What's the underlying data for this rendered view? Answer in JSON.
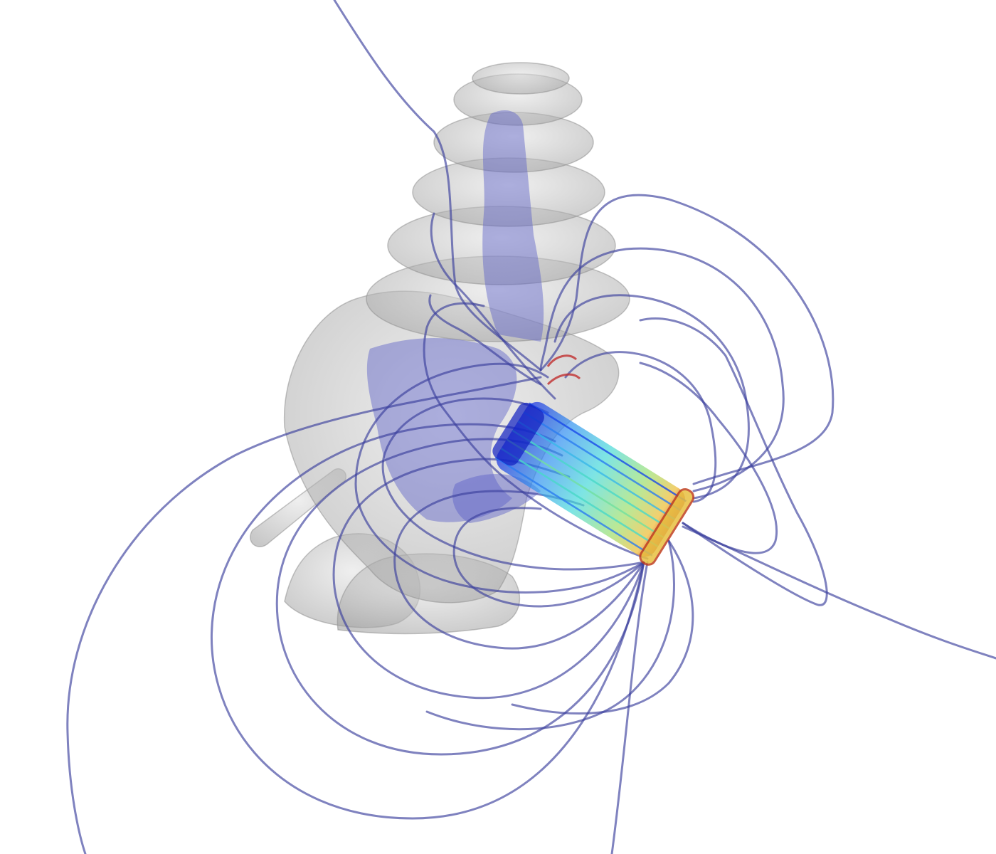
{
  "scene": {
    "background_color": "#ffffff",
    "colors": {
      "anatomy_fill": "#b8b8b8",
      "anatomy_edge": "#8a8a8a",
      "inner_duct": "#6a6ec8",
      "field_line": "#3a3f9c",
      "coil_gradient": [
        "#1030e0",
        "#20a0f0",
        "#40e0d0",
        "#90e060",
        "#f0d040",
        "#e05030",
        "#b02020"
      ]
    }
  }
}
